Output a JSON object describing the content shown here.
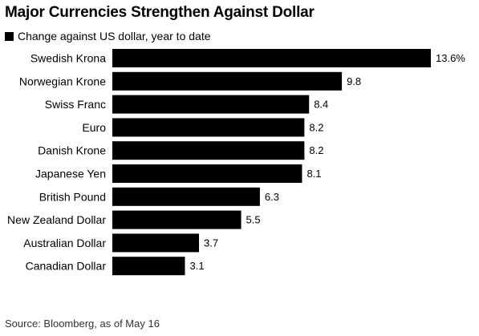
{
  "chart_data": {
    "type": "bar",
    "orientation": "horizontal",
    "title": "Major Currencies Strengthen Against Dollar",
    "legend": [
      "Change against US dollar, year to date"
    ],
    "categories": [
      "Swedish Krona",
      "Norwegian Krone",
      "Swiss Franc",
      "Euro",
      "Danish Krone",
      "Japanese Yen",
      "British Pound",
      "New Zealand Dollar",
      "Australian Dollar",
      "Canadian Dollar"
    ],
    "series": [
      {
        "name": "Change against US dollar, year to date",
        "values": [
          13.6,
          9.8,
          8.4,
          8.2,
          8.2,
          8.1,
          6.3,
          5.5,
          3.7,
          3.1
        ],
        "labels": [
          "13.6%",
          "9.8",
          "8.4",
          "8.2",
          "8.2",
          "8.1",
          "6.3",
          "5.5",
          "3.7",
          "3.1"
        ]
      }
    ],
    "xlim": [
      0,
      13.6
    ],
    "grid": false,
    "bar_color": "#000000"
  },
  "footer": {
    "source": "Source: Bloomberg, as of May 16"
  }
}
